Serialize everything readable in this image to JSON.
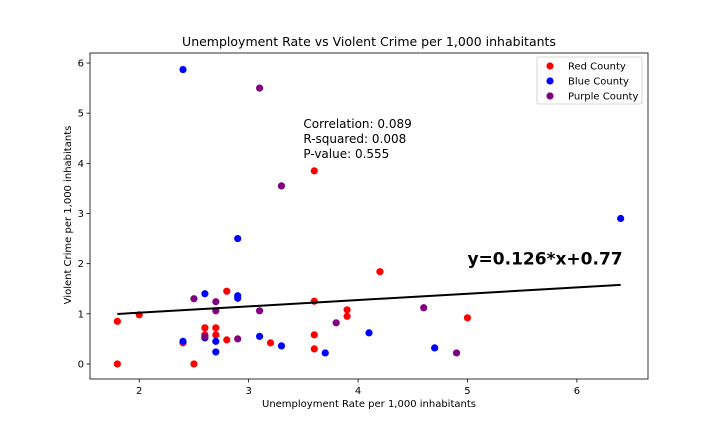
{
  "chart_data": {
    "type": "scatter",
    "title": "Unemployment Rate vs Violent Crime per 1,000 inhabitants",
    "xlabel": "Unemployment Rate per 1,000 inhabitants",
    "ylabel": "Violent Crime per 1,000 inhabitants",
    "xlim": [
      1.55,
      6.65
    ],
    "ylim": [
      -0.3,
      6.2
    ],
    "xticks": [
      2,
      3,
      4,
      5,
      6
    ],
    "yticks": [
      0,
      1,
      2,
      3,
      4,
      5,
      6
    ],
    "grid": false,
    "legend_position": "top-right",
    "series": [
      {
        "name": "Red County",
        "color": "#ff0000",
        "points": [
          [
            1.8,
            0.85
          ],
          [
            1.8,
            0.0
          ],
          [
            2.0,
            0.98
          ],
          [
            2.4,
            0.42
          ],
          [
            2.5,
            0.0
          ],
          [
            2.6,
            0.72
          ],
          [
            2.6,
            0.58
          ],
          [
            2.7,
            0.72
          ],
          [
            2.7,
            0.58
          ],
          [
            2.8,
            0.48
          ],
          [
            2.8,
            1.45
          ],
          [
            3.2,
            0.42
          ],
          [
            3.6,
            3.85
          ],
          [
            3.6,
            1.25
          ],
          [
            3.6,
            0.58
          ],
          [
            3.6,
            0.3
          ],
          [
            3.9,
            1.08
          ],
          [
            3.9,
            0.95
          ],
          [
            4.2,
            1.84
          ],
          [
            5.0,
            0.92
          ]
        ]
      },
      {
        "name": "Blue County",
        "color": "#0000ff",
        "points": [
          [
            2.4,
            5.87
          ],
          [
            2.4,
            0.45
          ],
          [
            2.6,
            1.4
          ],
          [
            2.6,
            0.52
          ],
          [
            2.7,
            0.45
          ],
          [
            2.7,
            0.24
          ],
          [
            2.9,
            2.5
          ],
          [
            2.9,
            1.36
          ],
          [
            2.9,
            1.31
          ],
          [
            3.1,
            0.55
          ],
          [
            3.3,
            0.36
          ],
          [
            3.7,
            0.22
          ],
          [
            4.1,
            0.62
          ],
          [
            4.7,
            0.32
          ],
          [
            6.4,
            2.9
          ]
        ]
      },
      {
        "name": "Purple County",
        "color": "#800080",
        "points": [
          [
            2.5,
            1.3
          ],
          [
            2.6,
            0.55
          ],
          [
            2.7,
            1.24
          ],
          [
            2.7,
            1.06
          ],
          [
            2.9,
            0.5
          ],
          [
            3.1,
            5.5
          ],
          [
            3.1,
            1.06
          ],
          [
            3.3,
            3.55
          ],
          [
            3.8,
            0.82
          ],
          [
            4.6,
            1.12
          ],
          [
            4.9,
            0.22
          ]
        ]
      }
    ],
    "regression_line": {
      "slope": 0.126,
      "intercept": 0.77,
      "x_from": 1.8,
      "x_to": 6.4,
      "color": "#000000"
    },
    "annotations": {
      "stats": [
        "Correlation: 0.089",
        "R-squared: 0.008",
        "P-value: 0.555"
      ],
      "stats_anchor": [
        3.5,
        4.7
      ],
      "equation": "y=0.126*x+0.77",
      "equation_anchor": [
        5.0,
        2.0
      ]
    }
  }
}
